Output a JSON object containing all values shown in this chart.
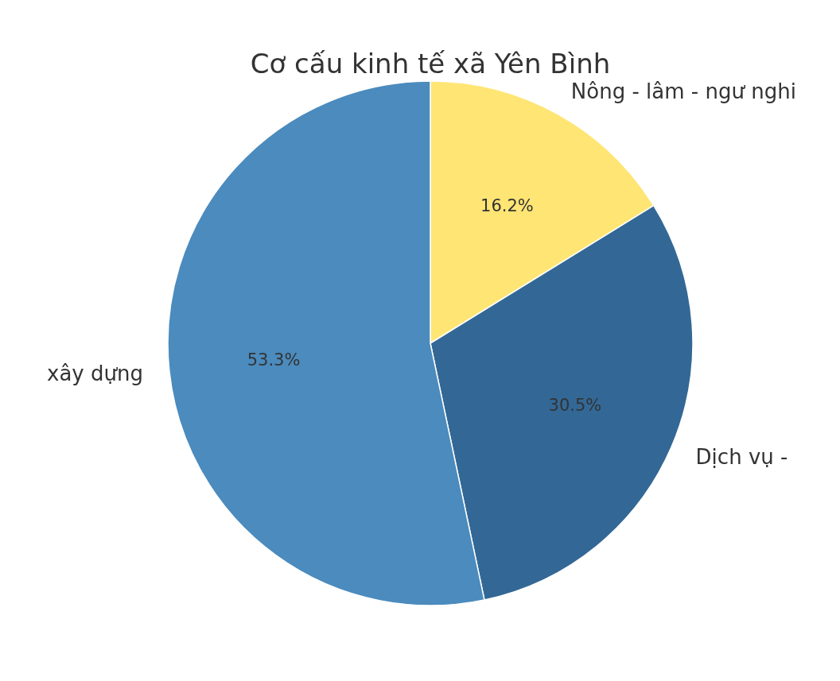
{
  "chart_data": {
    "type": "pie",
    "title": "Cơ cấu kinh tế xã Yên Bình",
    "categories": [
      "Nông - lâm - ngư nghi",
      "Dịch vụ -",
      "xây dựng"
    ],
    "values": [
      16.2,
      30.5,
      53.3
    ],
    "colors": [
      "#ffe574",
      "#336896",
      "#4b8bbe"
    ],
    "value_labels": [
      "16.2%",
      "30.5%",
      "53.3%"
    ]
  }
}
